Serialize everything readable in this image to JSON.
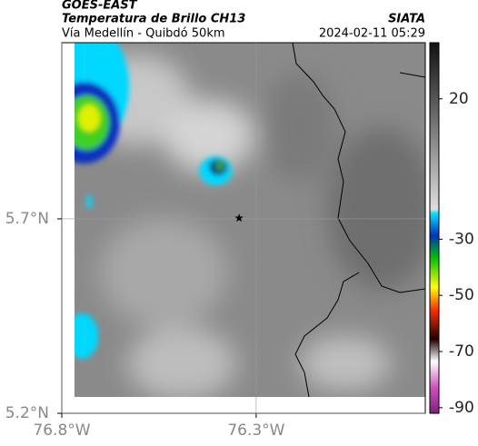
{
  "header": {
    "product": "GOES-EAST",
    "title": "Temperatura de Brillo CH13",
    "subtitle": "Vía Medellín - Quibdó 50km",
    "source": "SIATA",
    "timestamp": "2024-02-11 05:29"
  },
  "map": {
    "lonlim": [
      -76.8,
      -75.865
    ],
    "latlim": [
      5.2,
      6.153
    ],
    "lonticks": [
      {
        "value": -76.8,
        "label": "76.8°W"
      },
      {
        "value": -76.3,
        "label": "76.3°W"
      }
    ],
    "latticks": [
      {
        "value": 5.7,
        "label": "5.7°N"
      },
      {
        "value": 5.2,
        "label": "5.2°N"
      }
    ],
    "marker": {
      "lon": -76.344,
      "lat": 5.702
    }
  },
  "colorbar": {
    "lim": [
      -92,
      40
    ],
    "ticks": [
      20,
      -30,
      -50,
      -70,
      -90
    ]
  }
}
